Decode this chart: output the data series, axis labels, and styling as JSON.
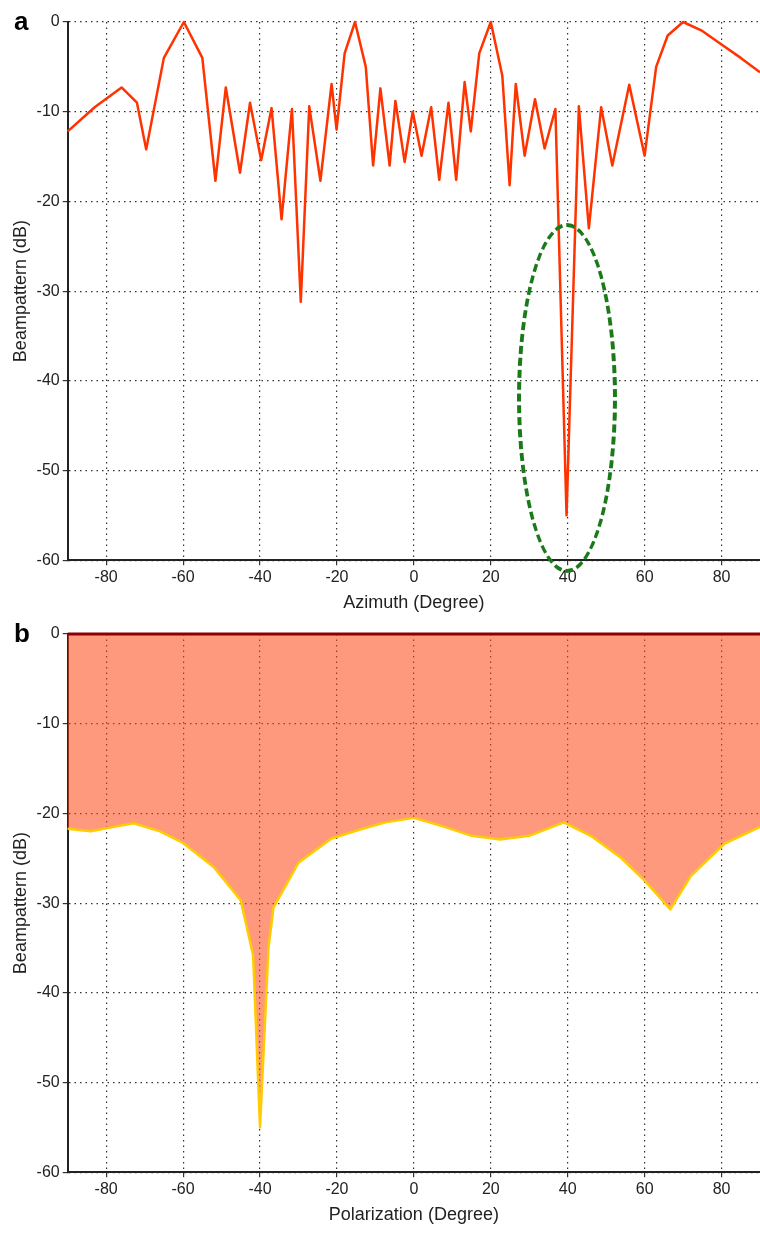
{
  "chart_data": [
    {
      "type": "line",
      "annotations": [
        "a"
      ],
      "xlabel": "Azimuth (Degree)",
      "ylabel": "Beampattern (dB)",
      "xlim": [
        -90,
        90
      ],
      "xticks": [
        -80,
        -60,
        -40,
        -20,
        0,
        20,
        40,
        60,
        80
      ],
      "ylim": [
        -60,
        0
      ],
      "yticks": [
        -60,
        -50,
        -40,
        -30,
        -20,
        -10,
        0
      ],
      "grid": true,
      "legend": false,
      "marker": "none",
      "line_style": "solid",
      "series": [
        {
          "color": "#ff3300",
          "x": [
            -90,
            -83,
            -76,
            -72,
            -69.6,
            -65,
            -59.8,
            -55,
            -51.6,
            -48.9,
            -45.2,
            -42.6,
            -39.7,
            -37,
            -34.4,
            -31.7,
            -29.4,
            -27.2,
            -24.3,
            -21.4,
            -20.1,
            -18,
            -15.3,
            -12.5,
            -10.6,
            -8.7,
            -6.3,
            -4.8,
            -2.4,
            -0.3,
            2,
            4.5,
            6.6,
            9,
            11,
            13.2,
            14.8,
            17,
            20,
            23,
            24.9,
            26.5,
            28.8,
            31.5,
            34,
            36.8,
            39.7,
            42.9,
            45.5,
            48.7,
            51.6,
            56,
            60,
            63,
            66,
            70,
            75,
            80,
            85,
            90
          ],
          "values": [
            -12.2,
            -9.5,
            -7.3,
            -9,
            -14.2,
            -4,
            0,
            -4,
            -17.7,
            -7.3,
            -16.8,
            -9,
            -15.4,
            -9.6,
            -22,
            -9.7,
            -31.2,
            -9.4,
            -17.7,
            -6.9,
            -12,
            -3.5,
            0,
            -5,
            -16,
            -7.4,
            -16,
            -8.8,
            -15.6,
            -10,
            -14.9,
            -9.5,
            -17.6,
            -9,
            -17.6,
            -6.7,
            -12.2,
            -3.5,
            0,
            -6,
            -18.2,
            -6.9,
            -14.9,
            -8.6,
            -14.1,
            -9.7,
            -55,
            -9.4,
            -23,
            -9.5,
            -16,
            -7,
            -14.9,
            -5,
            -1.5,
            0,
            -1,
            -2.5,
            -4,
            -5.6
          ]
        }
      ]
    },
    {
      "type": "line",
      "annotations": [
        "b"
      ],
      "xlabel": "Polarization (Degree)",
      "ylabel": "Beampattern (dB)",
      "xlim": [
        -90,
        90
      ],
      "xticks": [
        -80,
        -60,
        -40,
        -20,
        0,
        20,
        40,
        60,
        80
      ],
      "ylim": [
        -60,
        0
      ],
      "yticks": [
        -60,
        -50,
        -40,
        -30,
        -20,
        -10,
        0
      ],
      "grid": true,
      "legend": false,
      "marker": "none",
      "line_style": "solid",
      "series": [
        {
          "color": "#ffcc00",
          "x": [
            -90,
            -84,
            -78,
            -72.8,
            -66,
            -60,
            -52,
            -45,
            -41.8,
            -40,
            -37.8,
            -36.5,
            -30,
            -21.4,
            -14,
            -7.4,
            0,
            8,
            15,
            22.5,
            30,
            39,
            46,
            54,
            60,
            66.7,
            72,
            80.7,
            90
          ],
          "values": [
            -21.7,
            -22,
            -21.5,
            -21.1,
            -22,
            -23.3,
            -26,
            -29.7,
            -35.8,
            -55,
            -35,
            -30.5,
            -25.5,
            -22.8,
            -21.8,
            -21,
            -20.5,
            -21.5,
            -22.5,
            -22.9,
            -22.5,
            -21,
            -22.5,
            -25,
            -27.5,
            -30.7,
            -27,
            -23.4,
            -21.5
          ],
          "lower": [
            -21.7,
            -22,
            -21.5,
            -21.1,
            -22,
            -23.3,
            -26,
            -29.7,
            -35.8,
            -55,
            -35,
            -30.5,
            -25.5,
            -22.8,
            -21.8,
            -21,
            -20.5,
            -21.5,
            -22.5,
            -22.9,
            -22.5,
            -21,
            -22.5,
            -25,
            -27.5,
            -30.7,
            -27,
            -23.4,
            -21.5
          ],
          "upper": [
            0,
            0,
            0,
            0,
            0,
            0,
            0,
            0,
            0,
            0,
            0,
            0,
            0,
            0,
            0,
            0,
            0,
            0,
            0,
            0,
            0,
            0,
            0,
            0,
            0,
            0,
            0,
            0,
            0
          ]
        }
      ]
    }
  ]
}
